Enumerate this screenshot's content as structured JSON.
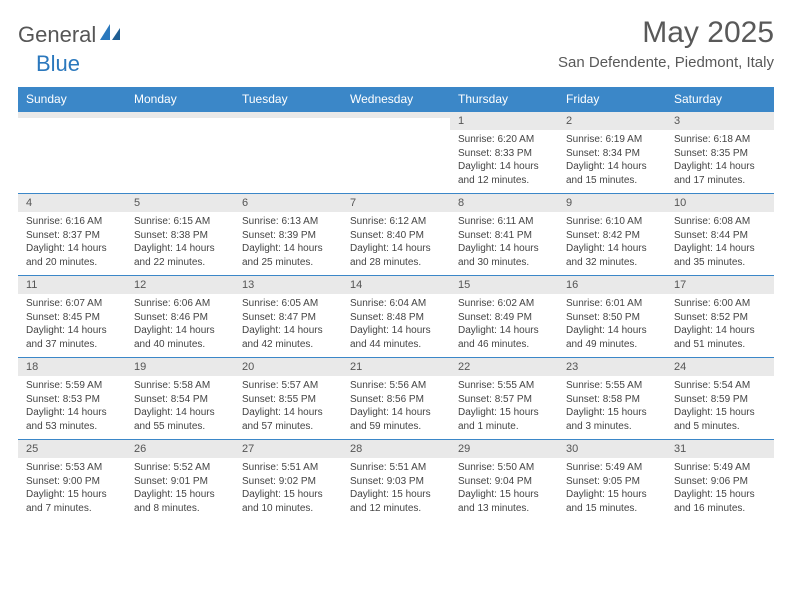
{
  "logo": {
    "text1": "General",
    "text2": "Blue"
  },
  "title": "May 2025",
  "location": "San Defendente, Piedmont, Italy",
  "colors": {
    "header_bg": "#3b87c8",
    "header_fg": "#ffffff",
    "daynum_bg": "#e9e9e9",
    "cell_border": "#3b87c8",
    "text": "#444444",
    "title_color": "#595959",
    "logo_gray": "#565656",
    "logo_blue": "#2b78bd"
  },
  "weekdays": [
    "Sunday",
    "Monday",
    "Tuesday",
    "Wednesday",
    "Thursday",
    "Friday",
    "Saturday"
  ],
  "weeks": [
    [
      {
        "n": "",
        "sr": "",
        "ss": "",
        "dl": ""
      },
      {
        "n": "",
        "sr": "",
        "ss": "",
        "dl": ""
      },
      {
        "n": "",
        "sr": "",
        "ss": "",
        "dl": ""
      },
      {
        "n": "",
        "sr": "",
        "ss": "",
        "dl": ""
      },
      {
        "n": "1",
        "sr": "Sunrise: 6:20 AM",
        "ss": "Sunset: 8:33 PM",
        "dl": "Daylight: 14 hours and 12 minutes."
      },
      {
        "n": "2",
        "sr": "Sunrise: 6:19 AM",
        "ss": "Sunset: 8:34 PM",
        "dl": "Daylight: 14 hours and 15 minutes."
      },
      {
        "n": "3",
        "sr": "Sunrise: 6:18 AM",
        "ss": "Sunset: 8:35 PM",
        "dl": "Daylight: 14 hours and 17 minutes."
      }
    ],
    [
      {
        "n": "4",
        "sr": "Sunrise: 6:16 AM",
        "ss": "Sunset: 8:37 PM",
        "dl": "Daylight: 14 hours and 20 minutes."
      },
      {
        "n": "5",
        "sr": "Sunrise: 6:15 AM",
        "ss": "Sunset: 8:38 PM",
        "dl": "Daylight: 14 hours and 22 minutes."
      },
      {
        "n": "6",
        "sr": "Sunrise: 6:13 AM",
        "ss": "Sunset: 8:39 PM",
        "dl": "Daylight: 14 hours and 25 minutes."
      },
      {
        "n": "7",
        "sr": "Sunrise: 6:12 AM",
        "ss": "Sunset: 8:40 PM",
        "dl": "Daylight: 14 hours and 28 minutes."
      },
      {
        "n": "8",
        "sr": "Sunrise: 6:11 AM",
        "ss": "Sunset: 8:41 PM",
        "dl": "Daylight: 14 hours and 30 minutes."
      },
      {
        "n": "9",
        "sr": "Sunrise: 6:10 AM",
        "ss": "Sunset: 8:42 PM",
        "dl": "Daylight: 14 hours and 32 minutes."
      },
      {
        "n": "10",
        "sr": "Sunrise: 6:08 AM",
        "ss": "Sunset: 8:44 PM",
        "dl": "Daylight: 14 hours and 35 minutes."
      }
    ],
    [
      {
        "n": "11",
        "sr": "Sunrise: 6:07 AM",
        "ss": "Sunset: 8:45 PM",
        "dl": "Daylight: 14 hours and 37 minutes."
      },
      {
        "n": "12",
        "sr": "Sunrise: 6:06 AM",
        "ss": "Sunset: 8:46 PM",
        "dl": "Daylight: 14 hours and 40 minutes."
      },
      {
        "n": "13",
        "sr": "Sunrise: 6:05 AM",
        "ss": "Sunset: 8:47 PM",
        "dl": "Daylight: 14 hours and 42 minutes."
      },
      {
        "n": "14",
        "sr": "Sunrise: 6:04 AM",
        "ss": "Sunset: 8:48 PM",
        "dl": "Daylight: 14 hours and 44 minutes."
      },
      {
        "n": "15",
        "sr": "Sunrise: 6:02 AM",
        "ss": "Sunset: 8:49 PM",
        "dl": "Daylight: 14 hours and 46 minutes."
      },
      {
        "n": "16",
        "sr": "Sunrise: 6:01 AM",
        "ss": "Sunset: 8:50 PM",
        "dl": "Daylight: 14 hours and 49 minutes."
      },
      {
        "n": "17",
        "sr": "Sunrise: 6:00 AM",
        "ss": "Sunset: 8:52 PM",
        "dl": "Daylight: 14 hours and 51 minutes."
      }
    ],
    [
      {
        "n": "18",
        "sr": "Sunrise: 5:59 AM",
        "ss": "Sunset: 8:53 PM",
        "dl": "Daylight: 14 hours and 53 minutes."
      },
      {
        "n": "19",
        "sr": "Sunrise: 5:58 AM",
        "ss": "Sunset: 8:54 PM",
        "dl": "Daylight: 14 hours and 55 minutes."
      },
      {
        "n": "20",
        "sr": "Sunrise: 5:57 AM",
        "ss": "Sunset: 8:55 PM",
        "dl": "Daylight: 14 hours and 57 minutes."
      },
      {
        "n": "21",
        "sr": "Sunrise: 5:56 AM",
        "ss": "Sunset: 8:56 PM",
        "dl": "Daylight: 14 hours and 59 minutes."
      },
      {
        "n": "22",
        "sr": "Sunrise: 5:55 AM",
        "ss": "Sunset: 8:57 PM",
        "dl": "Daylight: 15 hours and 1 minute."
      },
      {
        "n": "23",
        "sr": "Sunrise: 5:55 AM",
        "ss": "Sunset: 8:58 PM",
        "dl": "Daylight: 15 hours and 3 minutes."
      },
      {
        "n": "24",
        "sr": "Sunrise: 5:54 AM",
        "ss": "Sunset: 8:59 PM",
        "dl": "Daylight: 15 hours and 5 minutes."
      }
    ],
    [
      {
        "n": "25",
        "sr": "Sunrise: 5:53 AM",
        "ss": "Sunset: 9:00 PM",
        "dl": "Daylight: 15 hours and 7 minutes."
      },
      {
        "n": "26",
        "sr": "Sunrise: 5:52 AM",
        "ss": "Sunset: 9:01 PM",
        "dl": "Daylight: 15 hours and 8 minutes."
      },
      {
        "n": "27",
        "sr": "Sunrise: 5:51 AM",
        "ss": "Sunset: 9:02 PM",
        "dl": "Daylight: 15 hours and 10 minutes."
      },
      {
        "n": "28",
        "sr": "Sunrise: 5:51 AM",
        "ss": "Sunset: 9:03 PM",
        "dl": "Daylight: 15 hours and 12 minutes."
      },
      {
        "n": "29",
        "sr": "Sunrise: 5:50 AM",
        "ss": "Sunset: 9:04 PM",
        "dl": "Daylight: 15 hours and 13 minutes."
      },
      {
        "n": "30",
        "sr": "Sunrise: 5:49 AM",
        "ss": "Sunset: 9:05 PM",
        "dl": "Daylight: 15 hours and 15 minutes."
      },
      {
        "n": "31",
        "sr": "Sunrise: 5:49 AM",
        "ss": "Sunset: 9:06 PM",
        "dl": "Daylight: 15 hours and 16 minutes."
      }
    ]
  ]
}
